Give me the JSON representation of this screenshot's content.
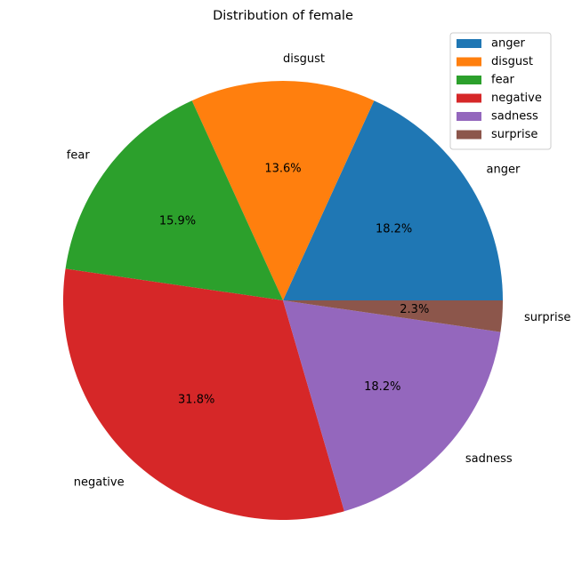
{
  "chart_data": {
    "type": "pie",
    "title": "Distribution of female",
    "categories": [
      "anger",
      "disgust",
      "fear",
      "negative",
      "sadness",
      "surprise"
    ],
    "values": [
      18.2,
      13.6,
      15.9,
      31.8,
      18.2,
      2.3
    ],
    "percent_labels": [
      "18.2%",
      "13.6%",
      "15.9%",
      "31.8%",
      "18.2%",
      "2.3%"
    ],
    "colors": [
      "#1f77b4",
      "#ff7f0e",
      "#2ca02c",
      "#d62728",
      "#9467bd",
      "#8c564b"
    ],
    "start_angle": 0,
    "direction": "counterclockwise",
    "legend": {
      "position": "top-right",
      "entries": [
        "anger",
        "disgust",
        "fear",
        "negative",
        "sadness",
        "surprise"
      ]
    }
  }
}
